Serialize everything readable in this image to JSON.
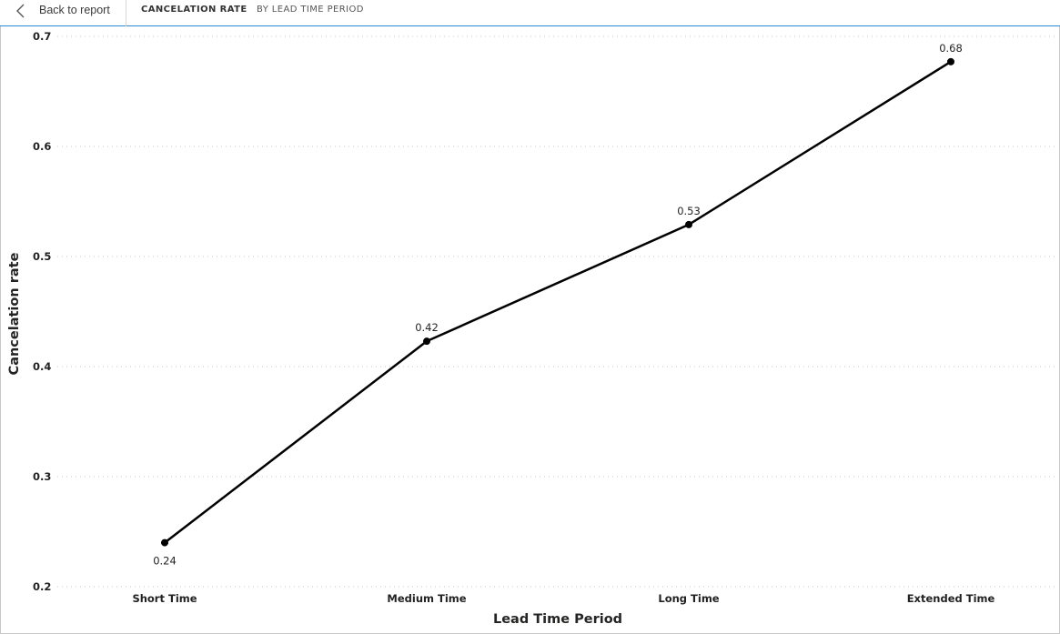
{
  "header": {
    "back_label": "Back to report",
    "title": "CANCELATION RATE",
    "subtitle": "BY LEAD TIME PERIOD"
  },
  "chart_data": {
    "type": "line",
    "categories": [
      "Short Time",
      "Medium Time",
      "Long Time",
      "Extended Time"
    ],
    "values": [
      0.24,
      0.423,
      0.529,
      0.677
    ],
    "data_labels": [
      "0.24",
      "0.42",
      "0.53",
      "0.68"
    ],
    "xlabel": "Lead Time Period",
    "ylabel": "Cancelation rate",
    "ylim": [
      0.2,
      0.7
    ],
    "yticks": [
      0.2,
      0.3,
      0.4,
      0.5,
      0.6,
      0.7
    ],
    "ytick_labels": [
      "0.2",
      "0.3",
      "0.4",
      "0.5",
      "0.6",
      "0.7"
    ],
    "grid": true,
    "line_color": "#000000"
  }
}
